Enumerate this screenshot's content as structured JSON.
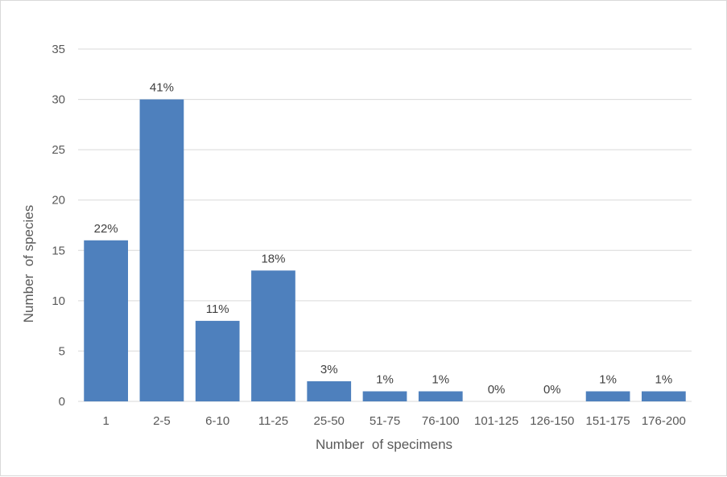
{
  "chart_data": {
    "type": "bar",
    "title": "",
    "xlabel": "Number  of specimens",
    "ylabel": "Number  of species",
    "categories": [
      "1",
      "2-5",
      "6-10",
      "11-25",
      "25-50",
      "51-75",
      "76-100",
      "101-125",
      "126-150",
      "151-175",
      "176-200"
    ],
    "values": [
      16,
      30,
      8,
      13,
      2,
      1,
      1,
      0,
      0,
      1,
      1
    ],
    "data_labels": [
      "22%",
      "41%",
      "11%",
      "18%",
      "3%",
      "1%",
      "1%",
      "0%",
      "0%",
      "1%",
      "1%"
    ],
    "ylim": [
      0,
      35
    ],
    "yticks": [
      "0",
      "5",
      "10",
      "15",
      "20",
      "25",
      "30",
      "35"
    ],
    "ytick_values": [
      0,
      5,
      10,
      15,
      20,
      25,
      30,
      35
    ],
    "grid": true,
    "legend": "none",
    "bar_color": "#4e80bd",
    "grid_color": "#d9d9d9"
  }
}
